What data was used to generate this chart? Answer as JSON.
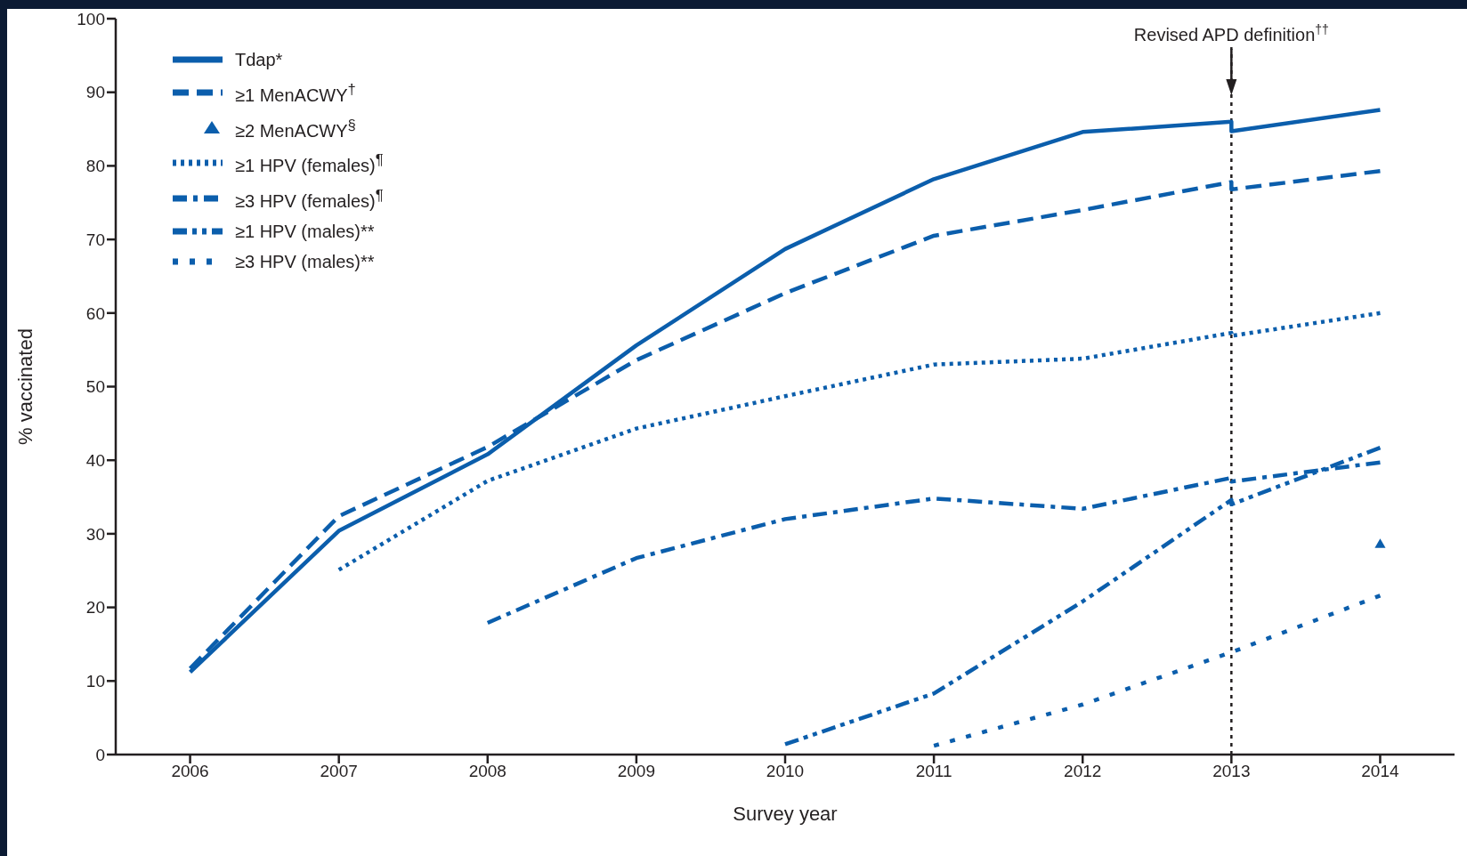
{
  "chart_data": {
    "type": "line",
    "xlabel": "Survey year",
    "ylabel": "% vaccinated",
    "xlim": [
      2005.5,
      2014.5
    ],
    "xticks": [
      2006,
      2007,
      2008,
      2009,
      2010,
      2011,
      2012,
      2013,
      2014
    ],
    "ylim": [
      0,
      100
    ],
    "yticks": [
      0,
      10,
      20,
      30,
      40,
      50,
      60,
      70,
      80,
      90,
      100
    ],
    "grid": false,
    "legend": "top left",
    "marker": "none",
    "series": [
      {
        "name": "Tdap*",
        "color": "#0b5eac",
        "line_style": "solid",
        "x": [
          2006,
          2007,
          2008,
          2009,
          2010,
          2011,
          2012,
          2013,
          2013,
          2014
        ],
        "values": [
          11.2,
          30.4,
          40.8,
          55.6,
          68.7,
          78.2,
          84.6,
          86.0,
          84.7,
          87.6
        ]
      },
      {
        "name": "≥1 MenACWY$^{†}$",
        "color": "#0b5eac",
        "line_style": "dashed",
        "x": [
          2006,
          2007,
          2008,
          2009,
          2010,
          2011,
          2012,
          2013,
          2013,
          2014
        ],
        "values": [
          11.7,
          32.4,
          41.8,
          53.6,
          62.7,
          70.5,
          74.0,
          77.8,
          76.8,
          79.3
        ]
      },
      {
        "name": "≥2 MenACWY$^{§}$",
        "type": "scatter",
        "marker": "triangle",
        "color": "#0b5eac",
        "x": [
          2014
        ],
        "values": [
          28.5
        ]
      },
      {
        "name": "≥1 HPV (females)$^{¶}$",
        "color": "#0b5eac",
        "line_style": "dotted",
        "x": [
          2007,
          2008,
          2009,
          2010,
          2011,
          2012,
          2013,
          2013,
          2014
        ],
        "values": [
          25.1,
          37.2,
          44.3,
          48.7,
          53.0,
          53.8,
          57.3,
          56.9,
          60.0
        ]
      },
      {
        "name": "≥3 HPV (females)$^{¶}$",
        "color": "#0b5eac",
        "line_style": "dashdot",
        "x": [
          2008,
          2009,
          2010,
          2011,
          2012,
          2013,
          2013,
          2014
        ],
        "values": [
          17.9,
          26.7,
          32.0,
          34.8,
          33.4,
          37.6,
          37.1,
          39.7
        ]
      },
      {
        "name": "≥1 HPV (males)**",
        "color": "#0b5eac",
        "line_style": "dashdotdot",
        "x": [
          2010,
          2011,
          2012,
          2013,
          2013,
          2014
        ],
        "values": [
          1.4,
          8.3,
          20.8,
          34.6,
          34.0,
          41.7
        ]
      },
      {
        "name": "≥3 HPV (males)**",
        "color": "#0b5eac",
        "line_style": "loosely dotted",
        "x": [
          2011,
          2012,
          2013,
          2014
        ],
        "values": [
          1.2,
          6.8,
          13.9,
          21.6
        ]
      }
    ],
    "ref_lines": [
      {
        "axis": "x",
        "value": 2013,
        "label": "Revised APD definition$^{††}$",
        "line_style": "dotted",
        "color": "#231f20"
      }
    ]
  }
}
